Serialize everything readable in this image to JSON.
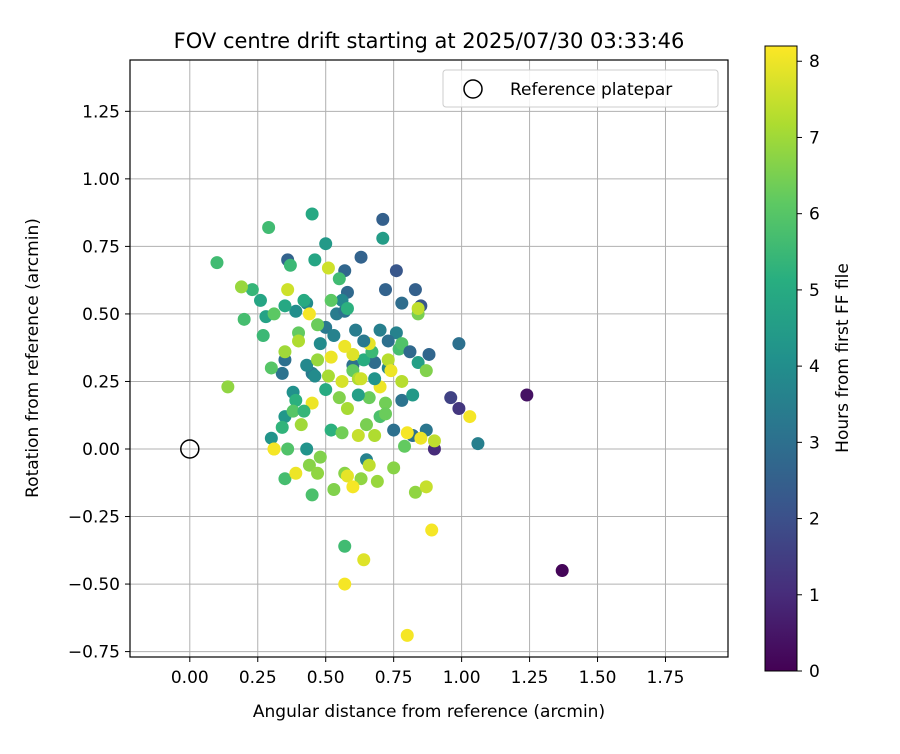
{
  "chart_data": {
    "type": "scatter",
    "title": "FOV centre drift starting at 2025/07/30 03:33:46",
    "xlabel": "Angular distance from reference (arcmin)",
    "ylabel": "Rotation from reference (arcmin)",
    "xlim": [
      -0.22,
      1.98
    ],
    "ylim": [
      -0.77,
      1.44
    ],
    "xticks": [
      0.0,
      0.25,
      0.5,
      0.75,
      1.0,
      1.25,
      1.5,
      1.75
    ],
    "yticks": [
      -0.75,
      -0.5,
      -0.25,
      0.0,
      0.25,
      0.5,
      0.75,
      1.0,
      1.25
    ],
    "xtick_labels": [
      "0.00",
      "0.25",
      "0.50",
      "0.75",
      "1.00",
      "1.25",
      "1.50",
      "1.75"
    ],
    "ytick_labels": [
      "−0.75",
      "−0.50",
      "−0.25",
      "0.00",
      "0.25",
      "0.50",
      "0.75",
      "1.00",
      "1.25"
    ],
    "grid": true,
    "legend": {
      "position": "top-right",
      "label": "Reference platepar"
    },
    "reference": {
      "x": 0.0,
      "y": 0.0
    },
    "colorbar": {
      "label": "Hours from first FF file",
      "range": [
        0,
        8.2
      ],
      "ticks": [
        0,
        1,
        2,
        3,
        4,
        5,
        6,
        7,
        8
      ],
      "tick_labels": [
        "0",
        "1",
        "2",
        "3",
        "4",
        "5",
        "6",
        "7",
        "8"
      ],
      "colormap": "viridis"
    },
    "points": [
      {
        "x": 1.37,
        "y": -0.45,
        "h": 0.1
      },
      {
        "x": 1.24,
        "y": 0.2,
        "h": 0.4
      },
      {
        "x": 0.9,
        "y": 0.0,
        "h": 1.0
      },
      {
        "x": 0.99,
        "y": 0.15,
        "h": 1.3
      },
      {
        "x": 0.96,
        "y": 0.19,
        "h": 1.6
      },
      {
        "x": 0.71,
        "y": 0.85,
        "h": 2.5
      },
      {
        "x": 0.76,
        "y": 0.66,
        "h": 2.2
      },
      {
        "x": 0.63,
        "y": 0.71,
        "h": 2.6
      },
      {
        "x": 0.57,
        "y": 0.66,
        "h": 2.7
      },
      {
        "x": 0.83,
        "y": 0.59,
        "h": 2.5
      },
      {
        "x": 0.85,
        "y": 0.53,
        "h": 2.2
      },
      {
        "x": 0.78,
        "y": 0.54,
        "h": 2.9
      },
      {
        "x": 0.72,
        "y": 0.59,
        "h": 2.6
      },
      {
        "x": 0.58,
        "y": 0.58,
        "h": 2.8
      },
      {
        "x": 0.36,
        "y": 0.7,
        "h": 2.6
      },
      {
        "x": 0.88,
        "y": 0.35,
        "h": 2.7
      },
      {
        "x": 0.99,
        "y": 0.39,
        "h": 3.0
      },
      {
        "x": 1.06,
        "y": 0.02,
        "h": 3.5
      },
      {
        "x": 0.87,
        "y": 0.07,
        "h": 3.2
      },
      {
        "x": 0.82,
        "y": 0.05,
        "h": 3.0
      },
      {
        "x": 0.78,
        "y": 0.18,
        "h": 3.1
      },
      {
        "x": 0.75,
        "y": 0.07,
        "h": 3.0
      },
      {
        "x": 0.68,
        "y": 0.32,
        "h": 2.9
      },
      {
        "x": 0.6,
        "y": 0.31,
        "h": 3.0
      },
      {
        "x": 0.5,
        "y": 0.45,
        "h": 3.3
      },
      {
        "x": 0.54,
        "y": 0.5,
        "h": 3.4
      },
      {
        "x": 0.57,
        "y": 0.51,
        "h": 3.1
      },
      {
        "x": 0.35,
        "y": 0.33,
        "h": 3.0
      },
      {
        "x": 0.34,
        "y": 0.28,
        "h": 3.1
      },
      {
        "x": 0.45,
        "y": 0.28,
        "h": 3.3
      },
      {
        "x": 0.61,
        "y": 0.44,
        "h": 3.4
      },
      {
        "x": 0.7,
        "y": 0.44,
        "h": 3.5
      },
      {
        "x": 0.76,
        "y": 0.43,
        "h": 3.6
      },
      {
        "x": 0.73,
        "y": 0.3,
        "h": 3.7
      },
      {
        "x": 0.65,
        "y": -0.04,
        "h": 3.6
      },
      {
        "x": 0.43,
        "y": 0.31,
        "h": 3.8
      },
      {
        "x": 0.48,
        "y": 0.39,
        "h": 3.9
      },
      {
        "x": 0.56,
        "y": 0.55,
        "h": 3.8
      },
      {
        "x": 0.43,
        "y": 0.54,
        "h": 3.9
      },
      {
        "x": 0.39,
        "y": 0.51,
        "h": 4.0
      },
      {
        "x": 0.38,
        "y": 0.21,
        "h": 4.1
      },
      {
        "x": 0.3,
        "y": 0.04,
        "h": 4.2
      },
      {
        "x": 0.35,
        "y": 0.12,
        "h": 4.3
      },
      {
        "x": 0.43,
        "y": 0.0,
        "h": 4.2
      },
      {
        "x": 0.5,
        "y": 0.76,
        "h": 4.4
      },
      {
        "x": 0.71,
        "y": 0.78,
        "h": 4.5
      },
      {
        "x": 0.82,
        "y": 0.2,
        "h": 4.4
      },
      {
        "x": 0.84,
        "y": 0.32,
        "h": 4.6
      },
      {
        "x": 0.45,
        "y": 0.87,
        "h": 4.9
      },
      {
        "x": 0.46,
        "y": 0.7,
        "h": 4.8
      },
      {
        "x": 0.26,
        "y": 0.55,
        "h": 4.8
      },
      {
        "x": 0.28,
        "y": 0.49,
        "h": 4.7
      },
      {
        "x": 0.35,
        "y": 0.53,
        "h": 4.9
      },
      {
        "x": 0.42,
        "y": 0.55,
        "h": 5.0
      },
      {
        "x": 0.64,
        "y": 0.33,
        "h": 5.1
      },
      {
        "x": 0.58,
        "y": 0.52,
        "h": 5.2
      },
      {
        "x": 0.39,
        "y": 0.18,
        "h": 5.2
      },
      {
        "x": 0.34,
        "y": 0.08,
        "h": 5.3
      },
      {
        "x": 0.52,
        "y": 0.07,
        "h": 5.2
      },
      {
        "x": 0.23,
        "y": 0.59,
        "h": 5.4
      },
      {
        "x": 0.27,
        "y": 0.42,
        "h": 5.5
      },
      {
        "x": 0.1,
        "y": 0.69,
        "h": 5.6
      },
      {
        "x": 0.2,
        "y": 0.48,
        "h": 5.7
      },
      {
        "x": 0.29,
        "y": 0.82,
        "h": 5.6
      },
      {
        "x": 0.37,
        "y": 0.68,
        "h": 5.5
      },
      {
        "x": 0.55,
        "y": 0.63,
        "h": 5.6
      },
      {
        "x": 0.67,
        "y": 0.36,
        "h": 5.5
      },
      {
        "x": 0.77,
        "y": 0.37,
        "h": 5.7
      },
      {
        "x": 0.7,
        "y": 0.12,
        "h": 5.8
      },
      {
        "x": 0.57,
        "y": -0.36,
        "h": 5.6
      },
      {
        "x": 0.45,
        "y": -0.17,
        "h": 5.8
      },
      {
        "x": 0.35,
        "y": -0.11,
        "h": 5.7
      },
      {
        "x": 0.36,
        "y": 0.0,
        "h": 5.9
      },
      {
        "x": 0.38,
        "y": 0.14,
        "h": 6.0
      },
      {
        "x": 0.3,
        "y": 0.3,
        "h": 6.0
      },
      {
        "x": 0.31,
        "y": 0.5,
        "h": 6.1
      },
      {
        "x": 0.4,
        "y": 0.43,
        "h": 6.2
      },
      {
        "x": 0.47,
        "y": 0.46,
        "h": 6.3
      },
      {
        "x": 0.52,
        "y": 0.55,
        "h": 6.1
      },
      {
        "x": 0.6,
        "y": 0.29,
        "h": 6.2
      },
      {
        "x": 0.66,
        "y": 0.19,
        "h": 6.3
      },
      {
        "x": 0.72,
        "y": 0.17,
        "h": 6.4
      },
      {
        "x": 0.79,
        "y": 0.01,
        "h": 6.2
      },
      {
        "x": 0.84,
        "y": 0.5,
        "h": 6.5
      },
      {
        "x": 0.87,
        "y": 0.29,
        "h": 6.6
      },
      {
        "x": 0.65,
        "y": 0.09,
        "h": 6.5
      },
      {
        "x": 0.56,
        "y": 0.06,
        "h": 6.4
      },
      {
        "x": 0.48,
        "y": -0.03,
        "h": 6.6
      },
      {
        "x": 0.44,
        "y": -0.06,
        "h": 6.7
      },
      {
        "x": 0.47,
        "y": -0.09,
        "h": 6.8
      },
      {
        "x": 0.53,
        "y": -0.15,
        "h": 6.6
      },
      {
        "x": 0.57,
        "y": -0.09,
        "h": 6.7
      },
      {
        "x": 0.63,
        "y": -0.11,
        "h": 6.8
      },
      {
        "x": 0.69,
        "y": -0.12,
        "h": 6.9
      },
      {
        "x": 0.75,
        "y": -0.07,
        "h": 6.7
      },
      {
        "x": 0.83,
        "y": -0.16,
        "h": 6.8
      },
      {
        "x": 0.14,
        "y": 0.23,
        "h": 6.8
      },
      {
        "x": 0.19,
        "y": 0.6,
        "h": 6.9
      },
      {
        "x": 0.35,
        "y": 0.36,
        "h": 7.0
      },
      {
        "x": 0.41,
        "y": 0.09,
        "h": 7.0
      },
      {
        "x": 0.51,
        "y": 0.27,
        "h": 7.1
      },
      {
        "x": 0.58,
        "y": 0.15,
        "h": 7.1
      },
      {
        "x": 0.62,
        "y": 0.26,
        "h": 7.2
      },
      {
        "x": 0.68,
        "y": 0.05,
        "h": 7.2
      },
      {
        "x": 0.73,
        "y": 0.33,
        "h": 7.3
      },
      {
        "x": 0.78,
        "y": 0.25,
        "h": 7.3
      },
      {
        "x": 0.84,
        "y": 0.52,
        "h": 7.4
      },
      {
        "x": 0.9,
        "y": 0.03,
        "h": 7.4
      },
      {
        "x": 0.87,
        "y": -0.14,
        "h": 7.5
      },
      {
        "x": 0.62,
        "y": 0.05,
        "h": 7.5
      },
      {
        "x": 0.51,
        "y": 0.67,
        "h": 7.6
      },
      {
        "x": 0.36,
        "y": 0.59,
        "h": 7.6
      },
      {
        "x": 0.31,
        "y": 0.0,
        "h": 7.7
      },
      {
        "x": 0.56,
        "y": 0.25,
        "h": 7.7
      },
      {
        "x": 0.6,
        "y": 0.35,
        "h": 7.8
      },
      {
        "x": 0.64,
        "y": -0.41,
        "h": 7.8
      },
      {
        "x": 0.58,
        "y": -0.1,
        "h": 7.9
      },
      {
        "x": 0.66,
        "y": 0.39,
        "h": 7.9
      },
      {
        "x": 0.7,
        "y": 0.23,
        "h": 8.0
      },
      {
        "x": 0.74,
        "y": 0.29,
        "h": 8.0
      },
      {
        "x": 0.85,
        "y": 0.04,
        "h": 8.0
      },
      {
        "x": 0.89,
        "y": -0.3,
        "h": 8.1
      },
      {
        "x": 1.03,
        "y": 0.12,
        "h": 8.1
      },
      {
        "x": 0.57,
        "y": -0.5,
        "h": 8.1
      },
      {
        "x": 0.8,
        "y": -0.69,
        "h": 8.1
      },
      {
        "x": 0.6,
        "y": -0.14,
        "h": 8.1
      },
      {
        "x": 0.45,
        "y": 0.17,
        "h": 8.0
      },
      {
        "x": 0.39,
        "y": -0.09,
        "h": 8.0
      },
      {
        "x": 0.31,
        "y": 0.0,
        "h": 8.1
      },
      {
        "x": 0.52,
        "y": 0.34,
        "h": 8.0
      },
      {
        "x": 0.44,
        "y": 0.5,
        "h": 8.1
      },
      {
        "x": 0.57,
        "y": 0.38,
        "h": 8.0
      },
      {
        "x": 0.8,
        "y": 0.06,
        "h": 8.1
      },
      {
        "x": 0.63,
        "y": 0.26,
        "h": 7.6
      },
      {
        "x": 0.66,
        "y": -0.06,
        "h": 7.4
      },
      {
        "x": 0.4,
        "y": 0.4,
        "h": 7.2
      },
      {
        "x": 0.47,
        "y": 0.33,
        "h": 6.9
      },
      {
        "x": 0.55,
        "y": 0.19,
        "h": 6.6
      },
      {
        "x": 0.72,
        "y": 0.13,
        "h": 6.3
      },
      {
        "x": 0.78,
        "y": 0.39,
        "h": 5.9
      },
      {
        "x": 0.42,
        "y": 0.14,
        "h": 5.4
      },
      {
        "x": 0.5,
        "y": 0.22,
        "h": 5.0
      },
      {
        "x": 0.62,
        "y": 0.2,
        "h": 4.6
      },
      {
        "x": 0.68,
        "y": 0.26,
        "h": 4.2
      },
      {
        "x": 0.46,
        "y": 0.27,
        "h": 3.9
      },
      {
        "x": 0.53,
        "y": 0.42,
        "h": 3.6
      },
      {
        "x": 0.64,
        "y": 0.4,
        "h": 3.3
      },
      {
        "x": 0.73,
        "y": 0.4,
        "h": 3.0
      },
      {
        "x": 0.81,
        "y": 0.36,
        "h": 2.8
      }
    ]
  }
}
